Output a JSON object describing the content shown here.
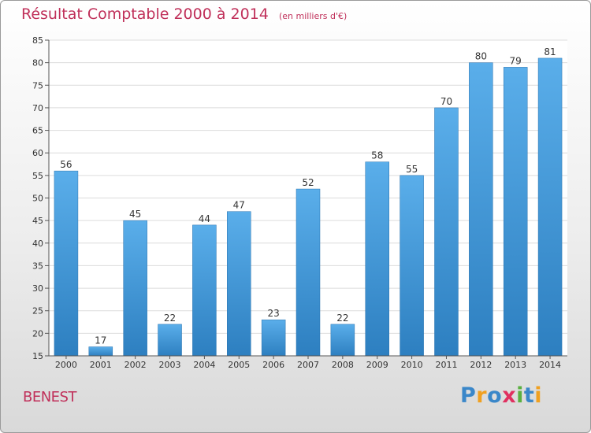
{
  "chart_data": {
    "type": "bar",
    "title": "Résultat Comptable 2000 à 2014",
    "subtitle": "(en milliers d'€)",
    "categories": [
      "2000",
      "2001",
      "2002",
      "2003",
      "2004",
      "2005",
      "2006",
      "2007",
      "2008",
      "2009",
      "2010",
      "2011",
      "2012",
      "2013",
      "2014"
    ],
    "values": [
      56,
      17,
      45,
      22,
      44,
      47,
      23,
      52,
      22,
      58,
      55,
      70,
      80,
      79,
      81
    ],
    "ylim": [
      15,
      85
    ],
    "yticks": [
      15,
      20,
      25,
      30,
      35,
      40,
      45,
      50,
      55,
      60,
      65,
      70,
      75,
      80,
      85
    ],
    "grid": true,
    "bar_color": "#3f93d6",
    "xlabel": "",
    "ylabel": ""
  },
  "footer": {
    "town": "BENEST",
    "logo_letters": [
      "P",
      "r",
      "o",
      "x",
      "i",
      "t",
      "i"
    ],
    "logo_colors": [
      "#3a87c9",
      "#f0a020",
      "#3a87c9",
      "#e03060",
      "#5ab040",
      "#3a87c9",
      "#f0a020"
    ]
  }
}
